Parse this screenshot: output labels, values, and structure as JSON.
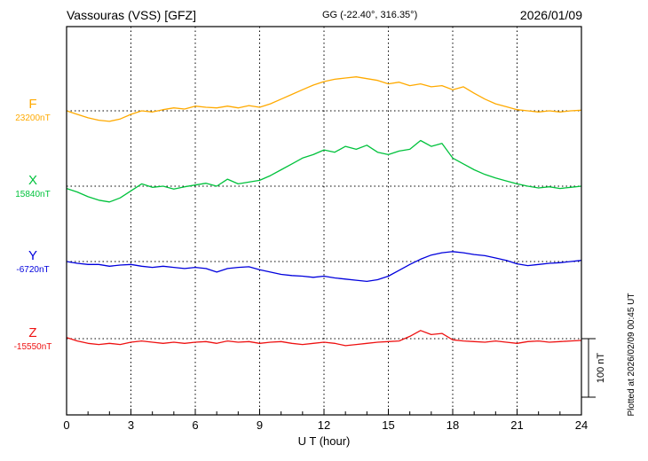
{
  "header": {
    "station_title": "Vassouras (VSS)  [GFZ]",
    "gg_coords": "GG (-22.40°, 316.35°)",
    "date": "2026/01/09"
  },
  "footer": {
    "plotted_at": "Plotted at 2026/02/09 00:45 UT"
  },
  "chart_data": {
    "type": "line",
    "title": "Vassouras (VSS)  [GFZ] magnetogram 2026/01/09",
    "xlabel": "U T (hour)",
    "xlim": [
      0,
      24
    ],
    "x_ticks": [
      0,
      3,
      6,
      9,
      12,
      15,
      18,
      21,
      24
    ],
    "grid": "dotted vertical at 3h ticks, dotted horizontal at each series baseline",
    "legend_position": "left margin, one colored letter + baseline value per series",
    "sample_step_hours": 0.5,
    "scale_bar": {
      "label": "100 nT",
      "nT": 100
    },
    "series": [
      {
        "id": "F",
        "label": "F",
        "baseline_label": "23200nT",
        "baseline_nT": 23200,
        "color": "#FFAA00",
        "values_rel_nT": [
          0,
          -6,
          -12,
          -16,
          -18,
          -14,
          -6,
          0,
          -2,
          2,
          5,
          3,
          8,
          6,
          5,
          8,
          5,
          9,
          6,
          12,
          20,
          28,
          36,
          44,
          50,
          54,
          56,
          58,
          55,
          52,
          46,
          49,
          43,
          46,
          41,
          43,
          36,
          41,
          30,
          20,
          12,
          7,
          2,
          0,
          -2,
          0,
          -2,
          0,
          1
        ]
      },
      {
        "id": "X",
        "label": "X",
        "baseline_label": "15840nT",
        "baseline_nT": 15840,
        "color": "#00C23C",
        "values_rel_nT": [
          -4,
          -10,
          -18,
          -24,
          -27,
          -20,
          -8,
          4,
          -2,
          0,
          -5,
          -1,
          2,
          5,
          0,
          12,
          4,
          7,
          10,
          18,
          28,
          38,
          48,
          54,
          62,
          58,
          68,
          63,
          70,
          58,
          54,
          60,
          63,
          78,
          68,
          73,
          48,
          38,
          28,
          20,
          14,
          9,
          4,
          0,
          -3,
          -1,
          -4,
          -2,
          0
        ]
      },
      {
        "id": "Y",
        "label": "Y",
        "baseline_label": "-6720nT",
        "baseline_nT": -6720,
        "color": "#0000DD",
        "values_rel_nT": [
          0,
          -3,
          -5,
          -5,
          -8,
          -6,
          -5,
          -8,
          -10,
          -8,
          -10,
          -12,
          -10,
          -12,
          -18,
          -12,
          -10,
          -9,
          -14,
          -18,
          -22,
          -24,
          -25,
          -27,
          -25,
          -28,
          -30,
          -32,
          -34,
          -31,
          -25,
          -15,
          -5,
          4,
          11,
          15,
          17,
          15,
          12,
          10,
          6,
          2,
          -4,
          -7,
          -5,
          -3,
          -2,
          0,
          2
        ]
      },
      {
        "id": "Z",
        "label": "Z",
        "baseline_label": "-15550nT",
        "baseline_nT": -15550,
        "color": "#EE1111",
        "values_rel_nT": [
          2,
          -4,
          -8,
          -10,
          -8,
          -10,
          -6,
          -4,
          -6,
          -8,
          -6,
          -8,
          -6,
          -5,
          -8,
          -4,
          -6,
          -5,
          -8,
          -6,
          -5,
          -8,
          -10,
          -8,
          -6,
          -8,
          -12,
          -10,
          -8,
          -6,
          -5,
          -4,
          4,
          14,
          7,
          9,
          -2,
          -4,
          -5,
          -6,
          -4,
          -6,
          -8,
          -5,
          -4,
          -6,
          -5,
          -4,
          -3
        ]
      }
    ]
  }
}
